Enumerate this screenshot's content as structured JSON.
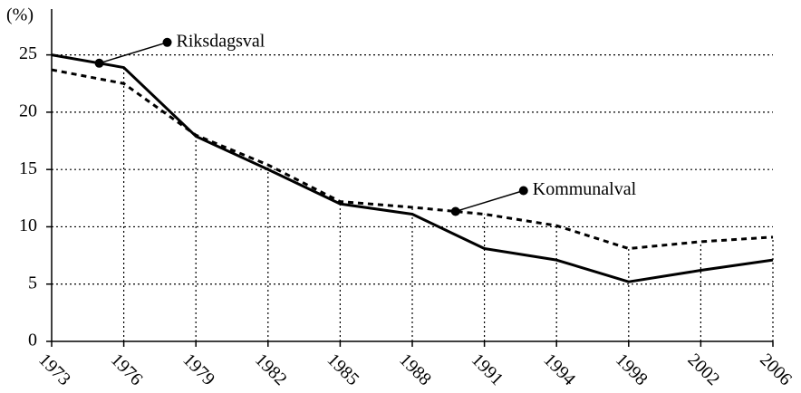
{
  "chart_data": {
    "type": "line",
    "y_label": "(%)",
    "categories": [
      "1973",
      "1976",
      "1979",
      "1982",
      "1985",
      "1988",
      "1991",
      "1994",
      "1998",
      "2002",
      "2006"
    ],
    "series": [
      {
        "name": "Riksdagsval",
        "color": "#000000",
        "dash": "solid",
        "values": [
          25,
          23.9,
          17.9,
          15,
          12,
          11.1,
          8.1,
          7.1,
          5.2,
          6.2,
          7.1
        ]
      },
      {
        "name": "Kommunalval",
        "color": "#000000",
        "dash": "dashed",
        "values": [
          23.7,
          22.5,
          18,
          15.4,
          12.2,
          11.7,
          11.1,
          10.1,
          8.1,
          8.7,
          9.1
        ]
      }
    ],
    "ylim": [
      0,
      29
    ],
    "yticks": [
      0,
      5,
      10,
      15,
      20,
      25
    ],
    "grid": true
  }
}
